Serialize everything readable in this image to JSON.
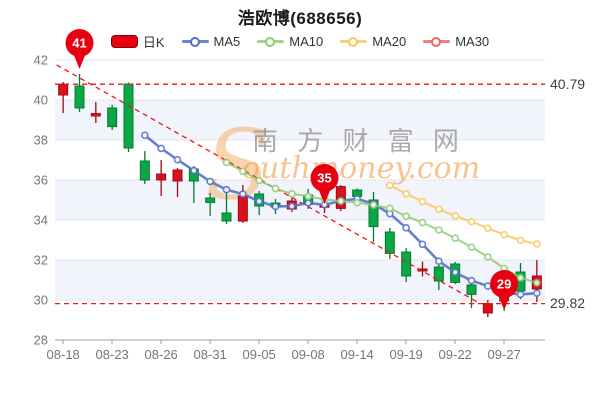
{
  "title": "浩欧博(688656)",
  "legend": [
    {
      "key": "daily-k",
      "label": "日K",
      "type": "candle",
      "color": "#e60012",
      "border": "#7e0008"
    },
    {
      "key": "ma5",
      "label": "MA5",
      "type": "line",
      "color": "#5470c6"
    },
    {
      "key": "ma10",
      "label": "MA10",
      "type": "line",
      "color": "#91cc75"
    },
    {
      "key": "ma20",
      "label": "MA20",
      "type": "line",
      "color": "#fac858"
    },
    {
      "key": "ma30",
      "label": "MA30",
      "type": "line",
      "color": "#ee6666"
    }
  ],
  "watermark": {
    "initial": "S",
    "line1": "南 方 财 富 网",
    "line2": "outhmoney.com"
  },
  "annotations": {
    "high_close_line": {
      "value": 40.79,
      "label": "40.79"
    },
    "low_close_line": {
      "value": 29.82,
      "label": "29.82"
    },
    "badges": [
      {
        "label": "41",
        "index": 1,
        "tip_value": 41.55
      },
      {
        "label": "35",
        "index": 16,
        "tip_value": 34.8
      },
      {
        "label": "29",
        "index": 27,
        "tip_value": 29.5
      }
    ],
    "trendline": {
      "from": {
        "index": 0.1,
        "value": 41.75
      },
      "to": {
        "index": 25.9,
        "value": 29.88
      }
    }
  },
  "chart_data": {
    "type": "candlestick",
    "x_tick_labels": [
      "08-18",
      "08-23",
      "08-26",
      "08-31",
      "09-05",
      "09-08",
      "09-14",
      "09-19",
      "09-22",
      "09-27"
    ],
    "x_tick_indices": [
      0,
      3,
      6,
      9,
      12,
      15,
      18,
      21,
      24,
      27
    ],
    "dates": [
      "08-18",
      "08-19",
      "08-22",
      "08-23",
      "08-24",
      "08-25",
      "08-26",
      "08-29",
      "08-30",
      "08-31",
      "09-01",
      "09-02",
      "09-05",
      "09-06",
      "09-07",
      "09-08",
      "09-09",
      "09-13",
      "09-14",
      "09-15",
      "09-16",
      "09-19",
      "09-20",
      "09-21",
      "09-22",
      "09-23",
      "09-26",
      "09-27",
      "09-28",
      "09-29"
    ],
    "ohlc_order": [
      "open",
      "high",
      "low",
      "close"
    ],
    "ohlc": [
      [
        40.25,
        40.9,
        39.35,
        40.79
      ],
      [
        40.7,
        41.3,
        39.4,
        39.6
      ],
      [
        39.2,
        39.9,
        38.85,
        39.32
      ],
      [
        39.6,
        39.75,
        38.5,
        38.67
      ],
      [
        40.8,
        40.88,
        37.4,
        37.6
      ],
      [
        36.95,
        37.45,
        35.8,
        36.0
      ],
      [
        36.0,
        37.0,
        35.2,
        36.3
      ],
      [
        35.95,
        36.6,
        35.15,
        36.5
      ],
      [
        36.55,
        36.7,
        34.85,
        35.95
      ],
      [
        35.1,
        35.35,
        34.2,
        34.88
      ],
      [
        34.35,
        35.65,
        33.8,
        33.95
      ],
      [
        33.95,
        35.75,
        33.85,
        35.2
      ],
      [
        35.3,
        35.45,
        34.25,
        34.7
      ],
      [
        34.85,
        35.05,
        34.3,
        34.65
      ],
      [
        34.55,
        35.1,
        34.4,
        34.95
      ],
      [
        35.25,
        35.55,
        34.55,
        34.78
      ],
      [
        34.68,
        34.97,
        34.35,
        34.72
      ],
      [
        34.58,
        35.75,
        34.45,
        35.67
      ],
      [
        35.5,
        35.58,
        34.8,
        35.18
      ],
      [
        35.0,
        35.4,
        32.9,
        33.67
      ],
      [
        33.4,
        33.6,
        32.05,
        32.33
      ],
      [
        32.4,
        32.6,
        30.9,
        31.2
      ],
      [
        31.45,
        31.92,
        31.18,
        31.55
      ],
      [
        31.65,
        31.75,
        30.5,
        30.95
      ],
      [
        31.8,
        31.9,
        30.8,
        30.88
      ],
      [
        30.75,
        30.85,
        29.6,
        30.28
      ],
      [
        29.35,
        30.0,
        29.15,
        29.82
      ],
      [
        30.15,
        30.45,
        29.45,
        29.95
      ],
      [
        31.4,
        31.85,
        30.05,
        30.45
      ],
      [
        30.55,
        32.0,
        29.9,
        31.2
      ]
    ],
    "ma_periods": [
      5,
      10,
      20,
      30
    ],
    "ylim": [
      28,
      42
    ],
    "y_ticks": [
      42,
      40,
      38,
      36,
      34,
      32,
      30,
      28
    ],
    "shaded_bands": [
      [
        38,
        40
      ],
      [
        34,
        36
      ],
      [
        30,
        32
      ]
    ],
    "grid": true,
    "legend_position": "top"
  },
  "colors": {
    "up": "#d7141e",
    "up_border": "#a30711",
    "down": "#0aa845",
    "down_border": "#047a30",
    "badge": "#e60012",
    "dashed": "#f21616",
    "band": "#f1f4fa",
    "grid": "#e2e6f0",
    "axis": "#9aa0a6",
    "tick_label": "#767676",
    "ma": {
      "5": "#5470c6",
      "10": "#91cc75",
      "20": "#fac858",
      "30": "#ee6666"
    },
    "watermark_gray": "rgba(150,150,150,0.8)",
    "watermark_orange": "rgba(242,158,73,0.62)",
    "watermark_s": "rgba(244,170,96,0.5)"
  }
}
